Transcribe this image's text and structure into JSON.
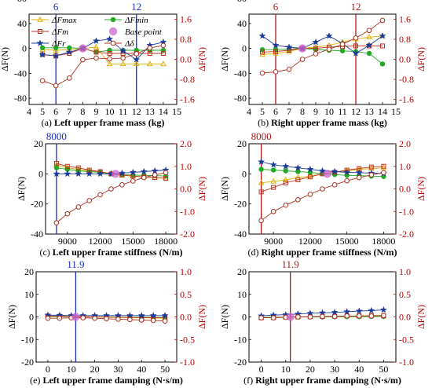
{
  "figure": {
    "colors": {
      "left": "#000000",
      "right": "#c00000",
      "marker_blue": "#0000dd",
      "marker_red": "#cc0000"
    }
  },
  "legend": {
    "entries": [
      {
        "key": "fmax",
        "label": "ΔFmax",
        "italic": true,
        "color": "#e0b000",
        "marker": "triangle"
      },
      {
        "key": "fmin",
        "label": "ΔFmin",
        "italic": true,
        "color": "#22aa22",
        "marker": "circle-filled"
      },
      {
        "key": "fm",
        "label": "ΔFm",
        "italic": true,
        "color": "#c03020",
        "marker": "square"
      },
      {
        "key": "base",
        "label": "Base point",
        "italic": true,
        "color": "#cc66cc",
        "marker": "big-circle"
      },
      {
        "key": "fr",
        "label": "ΔFr",
        "italic": true,
        "color": "#1a3a9a",
        "marker": "star"
      },
      {
        "key": "fdelta",
        "label": "Δδ",
        "italic": true,
        "color": "#aa3322",
        "marker": "circle-open"
      }
    ]
  },
  "chart_data": [
    {
      "type": "line",
      "caption_prefix": "(a)",
      "caption": "Left upper frame mass (kg)",
      "ylabel_left": "ΔF(N)",
      "ylabel_right": "ΔF(N)",
      "xlim": [
        4,
        15
      ],
      "xticks": [
        4,
        5,
        6,
        7,
        8,
        9,
        10,
        11,
        12,
        13,
        14,
        15
      ],
      "ylim_left": [
        -90,
        55
      ],
      "yticks_left": [
        80,
        40,
        0,
        -40,
        -80
      ],
      "ylim_right": [
        -1.8,
        1.8
      ],
      "yticks_right": [
        1.6,
        0.8,
        0.0,
        -0.8,
        -1.6
      ],
      "vlines": [
        {
          "x": 6,
          "label": "6",
          "color": "#1a2ecc"
        },
        {
          "x": 12,
          "label": "12",
          "color": "#1a2ecc"
        }
      ],
      "base_point": {
        "x": 8,
        "y": 0
      },
      "x": [
        5,
        6,
        7,
        8,
        9,
        10,
        11,
        12,
        13,
        14
      ],
      "series": [
        {
          "key": "fmax",
          "axis": "left",
          "values": [
            -2,
            -3,
            -2,
            0,
            2,
            -25,
            -25,
            -25,
            -25,
            -25
          ]
        },
        {
          "key": "fmin",
          "axis": "left",
          "values": [
            1,
            1,
            1,
            0,
            -6,
            -3,
            -3,
            -3,
            -3,
            -3
          ]
        },
        {
          "key": "fm",
          "axis": "left",
          "values": [
            -10,
            -12,
            -8,
            0,
            -6,
            -8,
            -8,
            -8,
            -8,
            -8
          ]
        },
        {
          "key": "fr",
          "axis": "left",
          "values": [
            -10,
            -12,
            -6,
            0,
            12,
            15,
            -4,
            -18,
            5,
            10
          ]
        },
        {
          "key": "fdelta",
          "axis": "right",
          "values": [
            -0.85,
            -1.05,
            -0.75,
            -0.02,
            0.05,
            0.02,
            0.05,
            0.22,
            0.45,
            0.55
          ]
        }
      ]
    },
    {
      "type": "line",
      "caption_prefix": "(b)",
      "caption": "Right upper frame mass (kg)",
      "ylabel_left": "ΔF(N)",
      "ylabel_right": "ΔF(N)",
      "xlim": [
        4,
        15
      ],
      "xticks": [
        4,
        5,
        6,
        7,
        8,
        9,
        10,
        11,
        12,
        13,
        14,
        15
      ],
      "ylim_left": [
        -90,
        55
      ],
      "yticks_left": [
        80,
        40,
        0,
        -40,
        -80
      ],
      "ylim_right": [
        -1.8,
        1.8
      ],
      "yticks_right": [
        1.6,
        0.8,
        0.0,
        -0.8,
        -1.6
      ],
      "vlines": [
        {
          "x": 6,
          "label": "6",
          "color": "#b01818"
        },
        {
          "x": 12,
          "label": "12",
          "color": "#b01818"
        }
      ],
      "base_point": {
        "x": 8,
        "y": 0
      },
      "x": [
        5,
        6,
        7,
        8,
        9,
        10,
        11,
        12,
        13,
        14
      ],
      "series": [
        {
          "key": "fmax",
          "axis": "left",
          "values": [
            -10,
            -8,
            -5,
            0,
            2,
            5,
            10,
            15,
            18,
            20
          ]
        },
        {
          "key": "fmin",
          "axis": "left",
          "values": [
            -2,
            -2,
            -1,
            0,
            -2,
            -3,
            -4,
            -5,
            -8,
            -25
          ]
        },
        {
          "key": "fm",
          "axis": "left",
          "values": [
            -6,
            -5,
            -3,
            0,
            0,
            2,
            3,
            4,
            4,
            4
          ]
        },
        {
          "key": "fr",
          "axis": "left",
          "values": [
            20,
            5,
            2,
            0,
            10,
            20,
            8,
            -8,
            5,
            20
          ]
        },
        {
          "key": "fdelta",
          "axis": "right",
          "values": [
            -0.55,
            -0.5,
            -0.4,
            0.0,
            0.22,
            0.4,
            0.6,
            0.85,
            1.15,
            1.55
          ]
        }
      ]
    },
    {
      "type": "line",
      "caption_prefix": "(c)",
      "caption": "Left upper frame stiffness (N/m)",
      "ylabel_left": "ΔF(N)",
      "ylabel_right": "ΔF(N)",
      "xlim": [
        7000,
        19000
      ],
      "xticks": [
        9000,
        12000,
        15000,
        18000
      ],
      "ylim_left": [
        -40,
        20
      ],
      "yticks_left": [
        20,
        0,
        -20,
        -40
      ],
      "ylim_right": [
        -2.0,
        2.0
      ],
      "yticks_right": [
        2.0,
        1.0,
        0.0,
        -1.0,
        -2.0
      ],
      "vlines": [
        {
          "x": 8000,
          "label": "8000",
          "color": "#1a2ecc"
        }
      ],
      "base_point": {
        "x": 13400,
        "y": 0
      },
      "x": [
        8000,
        9000,
        10000,
        11000,
        12000,
        13000,
        14000,
        15000,
        16000,
        17000,
        18000
      ],
      "series": [
        {
          "key": "fmax",
          "axis": "left",
          "values": [
            6,
            4,
            3,
            2,
            1,
            0,
            -1,
            -1.5,
            -2,
            -2.5,
            -3
          ]
        },
        {
          "key": "fmin",
          "axis": "left",
          "values": [
            4,
            3,
            2,
            1.5,
            1,
            0,
            -0.5,
            -0.8,
            -1,
            -1.2,
            -1.5
          ]
        },
        {
          "key": "fm",
          "axis": "left",
          "values": [
            7,
            5,
            4,
            2.5,
            1.5,
            0,
            -0.8,
            -1.5,
            -2,
            -2.5,
            -3
          ]
        },
        {
          "key": "fr",
          "axis": "left",
          "values": [
            0,
            0,
            0,
            0,
            0,
            0,
            0.5,
            1,
            1.5,
            2,
            2.5
          ]
        },
        {
          "key": "fdelta",
          "axis": "right",
          "values": [
            -1.5,
            -1.1,
            -0.8,
            -0.52,
            -0.26,
            0.0,
            0.18,
            0.35,
            0.5,
            0.62,
            0.72
          ]
        }
      ]
    },
    {
      "type": "line",
      "caption_prefix": "(d)",
      "caption": "Right upper frame stiffness (N/m)",
      "ylabel_left": "ΔF(N)",
      "ylabel_right": "ΔF(N)",
      "xlim": [
        7000,
        19000
      ],
      "xticks": [
        9000,
        12000,
        15000,
        18000
      ],
      "ylim_left": [
        -40,
        20
      ],
      "yticks_left": [
        20,
        0,
        -20,
        -40
      ],
      "ylim_right": [
        -2.0,
        2.0
      ],
      "yticks_right": [
        2.0,
        1.0,
        0.0,
        -1.0,
        -2.0
      ],
      "vlines": [
        {
          "x": 8000,
          "label": "8000",
          "color": "#b01818"
        }
      ],
      "base_point": {
        "x": 13400,
        "y": 0
      },
      "x": [
        8000,
        9000,
        10000,
        11000,
        12000,
        13000,
        14000,
        15000,
        16000,
        17000,
        18000
      ],
      "series": [
        {
          "key": "fmax",
          "axis": "left",
          "values": [
            -6,
            -5,
            -4,
            -2.5,
            -1.5,
            0,
            1,
            2,
            3,
            3.5,
            4
          ]
        },
        {
          "key": "fmin",
          "axis": "left",
          "values": [
            3,
            2.5,
            2,
            1.5,
            1,
            0,
            -0.5,
            -1,
            -1.2,
            -1.5,
            -1.8
          ]
        },
        {
          "key": "fm",
          "axis": "left",
          "values": [
            -12,
            -9,
            -6,
            -4,
            -2,
            0,
            1,
            2.5,
            3.5,
            4.5,
            5
          ]
        },
        {
          "key": "fr",
          "axis": "left",
          "values": [
            8,
            6,
            5,
            4,
            3,
            2,
            1.5,
            1,
            0.8,
            0.5,
            0.3
          ]
        },
        {
          "key": "fdelta",
          "axis": "right",
          "values": [
            -1.4,
            -1.0,
            -0.72,
            -0.48,
            -0.24,
            0.0,
            0.18,
            0.36,
            0.5,
            0.62,
            0.72
          ]
        }
      ]
    },
    {
      "type": "line",
      "caption_prefix": "(e)",
      "caption": "Left upper frame damping (N·s/m)",
      "ylabel_left": "ΔF(N)",
      "ylabel_right": "ΔF(N)",
      "xlim": [
        -5,
        55
      ],
      "xticks": [
        0,
        10,
        20,
        30,
        40,
        50
      ],
      "ylim_left": [
        -20,
        20
      ],
      "yticks_left": [
        20,
        10,
        0,
        -10,
        -20
      ],
      "ylim_right": [
        -1.0,
        1.0
      ],
      "yticks_right": [
        1.0,
        0.5,
        0.0,
        -0.5,
        -1.0
      ],
      "vlines": [
        {
          "x": 11.9,
          "label": "11.9",
          "color": "#1a2ecc"
        }
      ],
      "base_point": {
        "x": 11.9,
        "y": 0
      },
      "x": [
        0,
        5,
        10,
        15,
        20,
        25,
        30,
        35,
        40,
        45,
        50
      ],
      "series": [
        {
          "key": "fmax",
          "axis": "left",
          "values": [
            0.5,
            0.4,
            0.2,
            0.1,
            0,
            -0.1,
            -0.2,
            -0.3,
            -0.4,
            -0.5,
            -0.6
          ]
        },
        {
          "key": "fmin",
          "axis": "left",
          "values": [
            0.2,
            0.1,
            0.1,
            0,
            0,
            0,
            -0.1,
            -0.1,
            -0.1,
            -0.2,
            -0.2
          ]
        },
        {
          "key": "fm",
          "axis": "left",
          "values": [
            0.4,
            0.3,
            0.1,
            0,
            0,
            -0.1,
            -0.2,
            -0.2,
            -0.3,
            -0.3,
            -0.4
          ]
        },
        {
          "key": "fr",
          "axis": "left",
          "values": [
            0.8,
            0.7,
            0.6,
            0.6,
            0.6,
            0.6,
            0.6,
            0.6,
            0.6,
            0.6,
            0.6
          ]
        },
        {
          "key": "fdelta",
          "axis": "right",
          "values": [
            -0.03,
            -0.03,
            -0.02,
            -0.02,
            -0.03,
            -0.04,
            -0.05,
            -0.06,
            -0.07,
            -0.08,
            -0.09
          ]
        }
      ]
    },
    {
      "type": "line",
      "caption_prefix": "(f)",
      "caption": "Right upper frame damping (N·s/m)",
      "ylabel_left": "ΔF(N)",
      "ylabel_right": "ΔF(N)",
      "xlim": [
        -5,
        55
      ],
      "xticks": [
        0,
        10,
        20,
        30,
        40,
        50
      ],
      "ylim_left": [
        -20,
        20
      ],
      "yticks_left": [
        20,
        10,
        0,
        -10,
        -20
      ],
      "ylim_right": [
        -1.0,
        1.0
      ],
      "yticks_right": [
        1.0,
        0.5,
        0.0,
        -0.5,
        -1.0
      ],
      "vlines": [
        {
          "x": 11.9,
          "label": "11.9",
          "color": "#b01818"
        }
      ],
      "base_point": {
        "x": 11.9,
        "y": 0
      },
      "x": [
        0,
        5,
        10,
        15,
        20,
        25,
        30,
        35,
        40,
        45,
        50
      ],
      "series": [
        {
          "key": "fmax",
          "axis": "left",
          "values": [
            -0.3,
            -0.2,
            -0.1,
            0,
            0.1,
            0.2,
            0.3,
            0.4,
            0.5,
            0.6,
            0.7
          ]
        },
        {
          "key": "fmin",
          "axis": "left",
          "values": [
            -0.2,
            -0.1,
            -0.1,
            0,
            0,
            0,
            0.1,
            0.1,
            0.1,
            0.2,
            0.2
          ]
        },
        {
          "key": "fm",
          "axis": "left",
          "values": [
            -0.4,
            -0.3,
            -0.1,
            0,
            0.1,
            0.2,
            0.3,
            0.4,
            0.4,
            0.5,
            0.5
          ]
        },
        {
          "key": "fr",
          "axis": "left",
          "values": [
            0.5,
            0.8,
            1.0,
            1.3,
            1.6,
            1.8,
            2.0,
            2.3,
            2.6,
            2.8,
            3.1
          ]
        },
        {
          "key": "fdelta",
          "axis": "right",
          "values": [
            -0.02,
            -0.02,
            -0.01,
            0,
            0,
            0.01,
            0.01,
            0.02,
            0.02,
            0.02,
            0.03
          ]
        }
      ]
    }
  ]
}
